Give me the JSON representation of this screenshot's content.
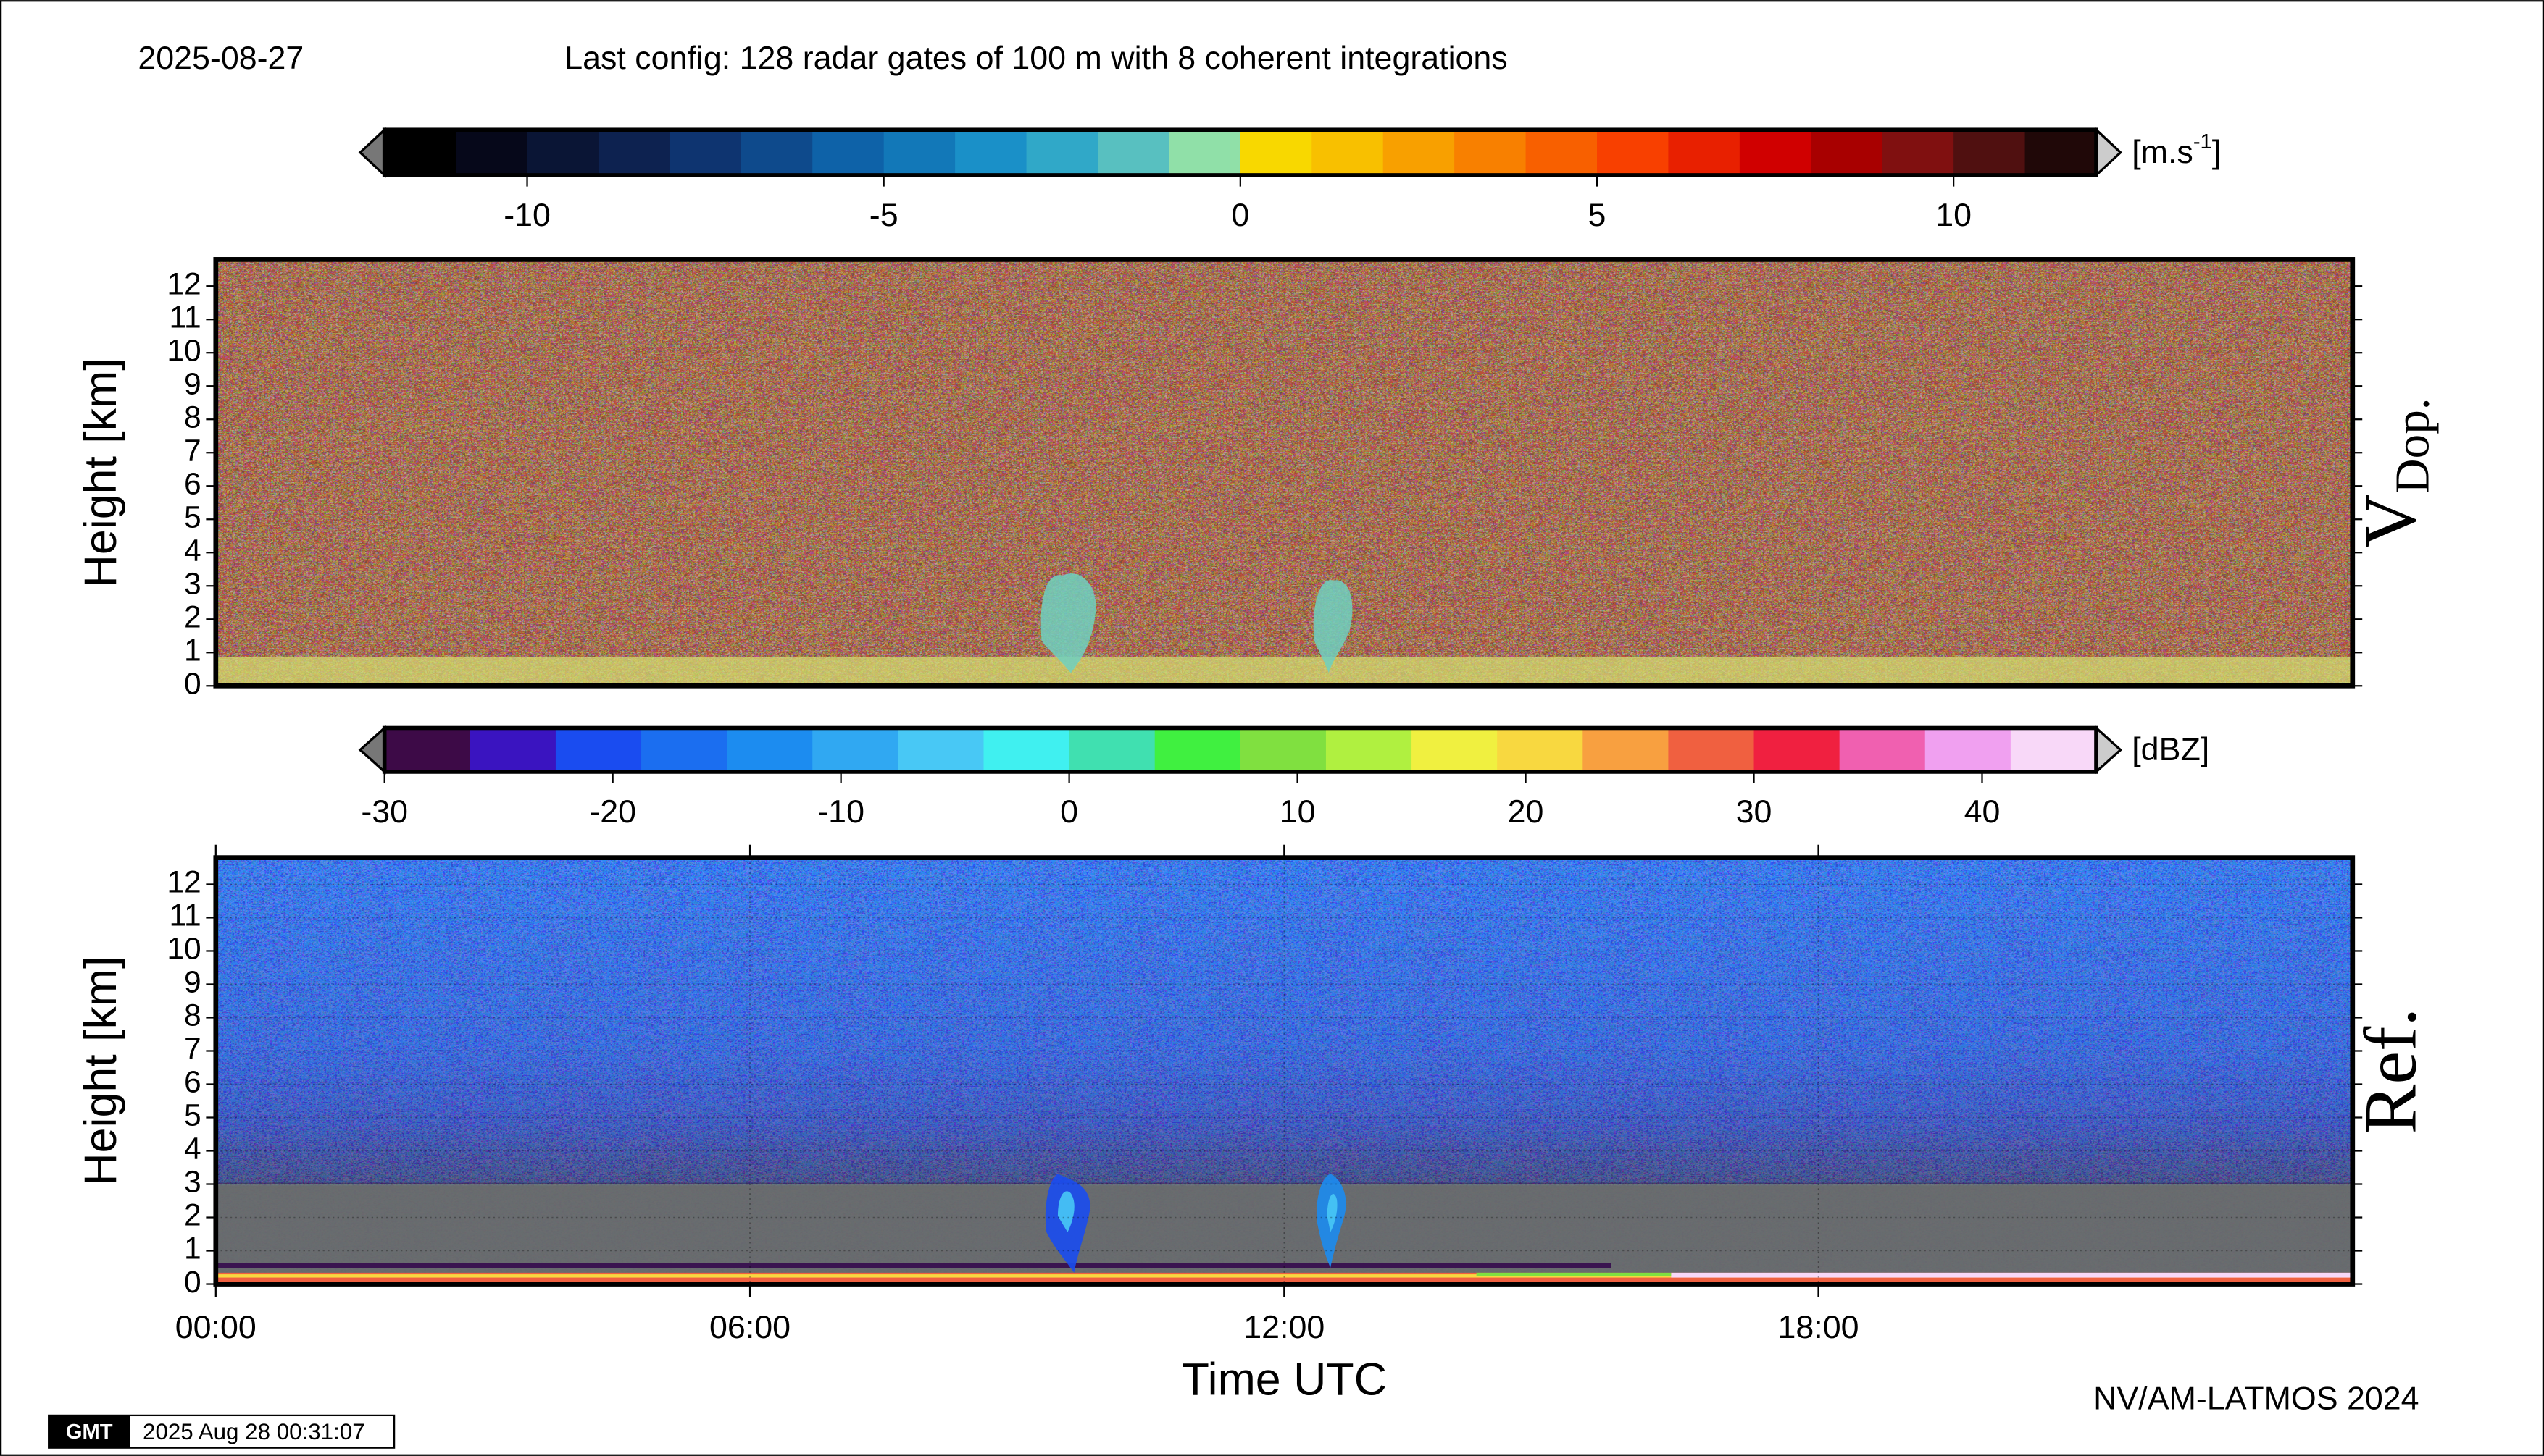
{
  "header": {
    "date": "2025-08-27",
    "config": "Last config: 128 radar gates of 100 m with 8 coherent integrations"
  },
  "chart_data": [
    {
      "type": "heatmap",
      "title": "V",
      "title_sub": "Dop.",
      "ylabel": "Height [km]",
      "ylim": [
        0,
        12.8
      ],
      "yticks": [
        0,
        1,
        2,
        3,
        4,
        5,
        6,
        7,
        8,
        9,
        10,
        11,
        12
      ],
      "colorbar": {
        "lim": [
          -12,
          12
        ],
        "ticks": [
          -10,
          -5,
          0,
          5,
          10
        ],
        "unit": "[m.s",
        "unit_sup": "-1",
        "unit_end": "]",
        "colors": [
          "#000000",
          "#06081a",
          "#0a1535",
          "#0d2250",
          "#0e3470",
          "#0e4a8c",
          "#0e62a8",
          "#1278b8",
          "#1a90c8",
          "#30a8c8",
          "#58c0c0",
          "#90e0a8",
          "#f8d800",
          "#f8c000",
          "#f8a000",
          "#f88000",
          "#f86000",
          "#f84000",
          "#e82000",
          "#d00000",
          "#a80000",
          "#801010",
          "#501010",
          "#200808"
        ]
      }
    },
    {
      "type": "heatmap",
      "title": "Ref.",
      "ylabel": "Height [km]",
      "xlabel": "Time UTC",
      "ylim": [
        0,
        12.8
      ],
      "yticks": [
        0,
        1,
        2,
        3,
        4,
        5,
        6,
        7,
        8,
        9,
        10,
        11,
        12
      ],
      "xlim": [
        0,
        24
      ],
      "xticks": [
        {
          "value": 0,
          "label": "00:00"
        },
        {
          "value": 6,
          "label": "06:00"
        },
        {
          "value": 12,
          "label": "12:00"
        },
        {
          "value": 18,
          "label": "18:00"
        }
      ],
      "grid": true,
      "colorbar": {
        "lim": [
          -30,
          45
        ],
        "ticks": [
          -30,
          -20,
          -10,
          0,
          10,
          20,
          30,
          40
        ],
        "unit": "[dBZ]",
        "colors": [
          "#3d0a47",
          "#3a14c0",
          "#1a4cf0",
          "#1b6ef0",
          "#1c8cf0",
          "#30a8f2",
          "#48c8f5",
          "#40f0f0",
          "#40e0b0",
          "#40f040",
          "#80e040",
          "#b0f040",
          "#f0f040",
          "#f8d840",
          "#f8a040",
          "#f06040",
          "#f02040",
          "#f060b0",
          "#f0a0f0",
          "#f8d8f8"
        ]
      }
    }
  ],
  "footer": {
    "credit": "NV/AM-LATMOS 2024",
    "logo": "GMT",
    "timestamp": "2025 Aug 28 00:31:07"
  }
}
